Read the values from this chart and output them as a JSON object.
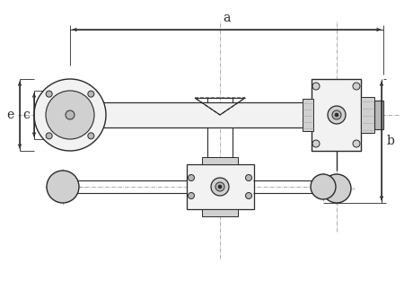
{
  "bg_color": "#ffffff",
  "line_color": "#2a2a2a",
  "dim_color": "#2a2a2a",
  "gray1": "#e8e8e8",
  "gray2": "#d0d0d0",
  "gray3": "#b8b8b8",
  "gray4": "#f2f2f2",
  "centerline_color": "#888888",
  "fig_w": 4.5,
  "fig_h": 3.13,
  "dpi": 100,
  "labels": {
    "a": "a",
    "b": "b",
    "c": "c",
    "e": "e"
  }
}
